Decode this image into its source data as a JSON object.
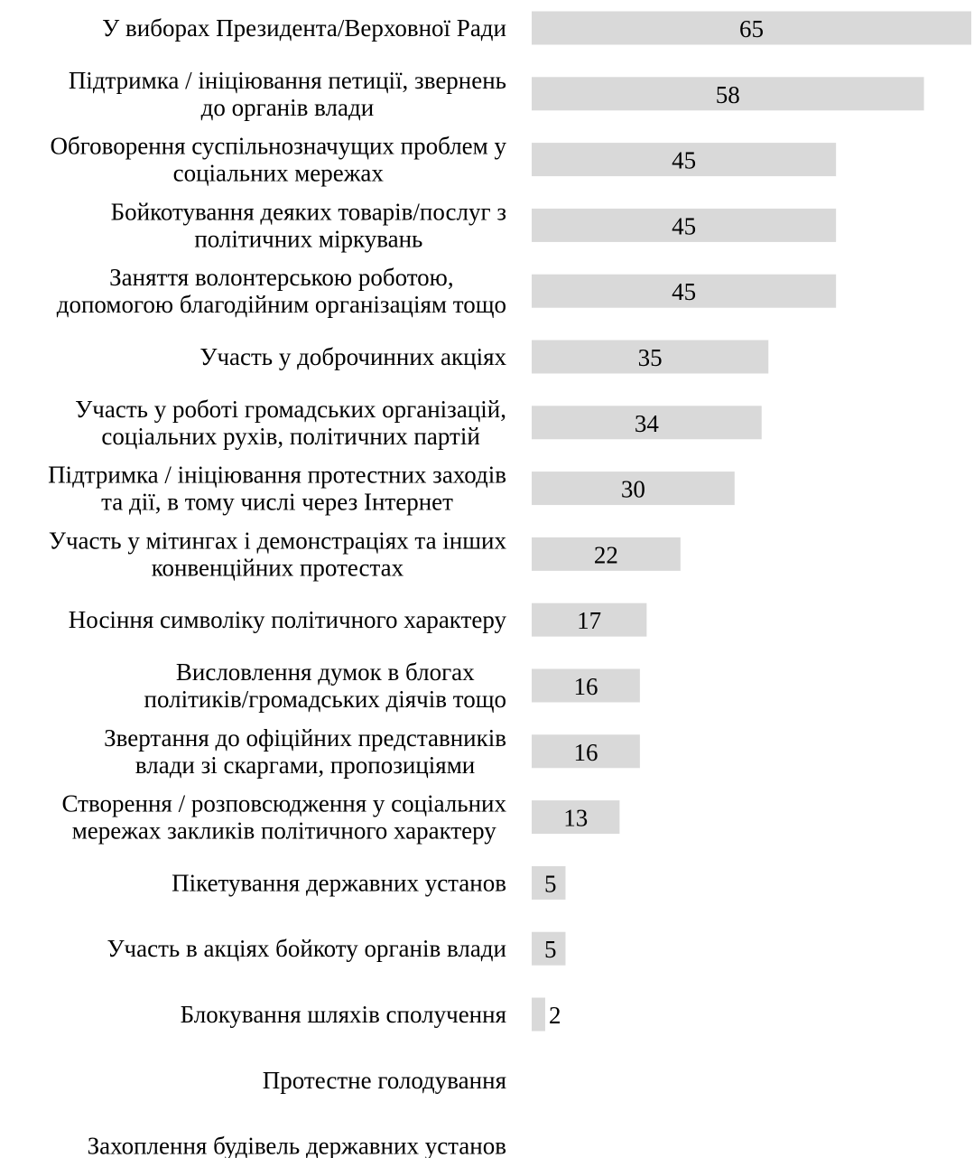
{
  "chart_data": {
    "type": "bar",
    "orientation": "horizontal",
    "title": "",
    "xlabel": "",
    "ylabel": "",
    "grid": false,
    "bar_color": "#d9d9d9",
    "xlim": [
      0,
      65
    ],
    "categories": [
      [
        "У виборах Президента/Верховної Ради"
      ],
      [
        "Підтримка / ініціювання петиції, звернень",
        "до органів влади"
      ],
      [
        "Обговорення суспільнозначущих проблем у",
        "соціальних мережах"
      ],
      [
        "Бойкотування деяких товарів/послуг з",
        "політичних міркувань"
      ],
      [
        "Заняття волонтерською роботою,",
        "допомогою благодійним організаціям тощо"
      ],
      [
        "Участь у доброчинних акціях"
      ],
      [
        "Участь у роботі громадських організацій,",
        "соціальних рухів, політичних партій"
      ],
      [
        "Підтримка / ініціювання протестних заходів",
        "та дії, в тому числі через Інтернет"
      ],
      [
        "Участь у мітингах і демонстраціях та інших",
        "конвенційних протестах"
      ],
      [
        "Носіння символіку політичного характеру"
      ],
      [
        "Висловлення думок в блогах",
        "політиків/громадських діячів тощо"
      ],
      [
        "Звертання до офіційних представників",
        "влади зі скаргами, пропозиціями"
      ],
      [
        "Створення / розповсюдження у соціальних",
        "мережах закликів політичного характеру"
      ],
      [
        "Пікетування державних установ"
      ],
      [
        "Участь в акціях бойкоту органів влади"
      ],
      [
        "Блокування шляхів сполучення"
      ],
      [
        "Протестне голодування"
      ],
      [
        "Захоплення будівель державних установ"
      ]
    ],
    "values": [
      65,
      58,
      45,
      45,
      45,
      35,
      34,
      30,
      22,
      17,
      16,
      16,
      13,
      5,
      5,
      2,
      0,
      0
    ],
    "data_labels": [
      "65",
      "58",
      "45",
      "45",
      "45",
      "35",
      "34",
      "30",
      "22",
      "17",
      "16",
      "16",
      "13",
      "5",
      "5",
      "2",
      "",
      ""
    ]
  }
}
